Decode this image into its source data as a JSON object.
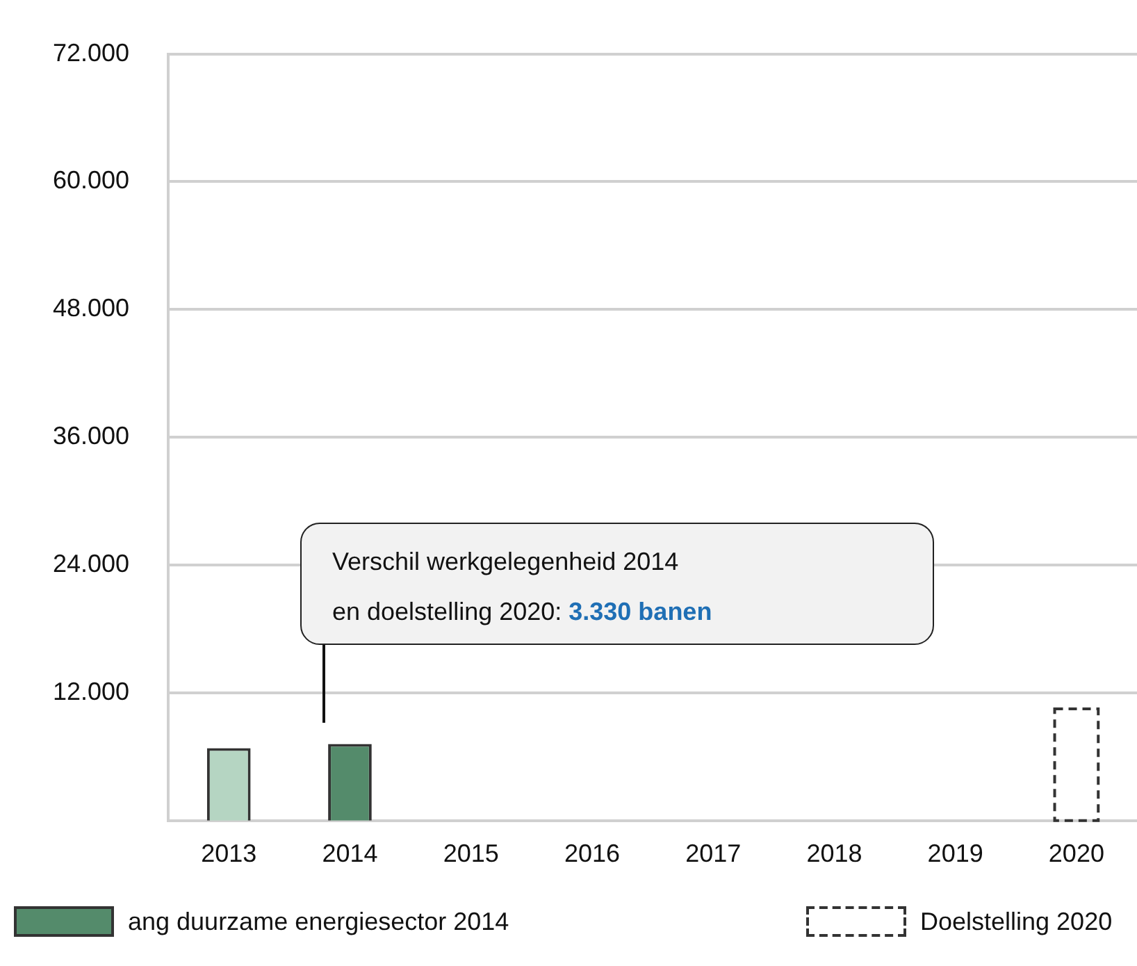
{
  "chart_data": {
    "type": "bar",
    "categories": [
      "2013",
      "2014",
      "2015",
      "2016",
      "2017",
      "2018",
      "2019",
      "2020"
    ],
    "series": [
      {
        "name": "ang duurzame energiesector 2014",
        "color": "#548b6b",
        "colors": [
          "#b5d5c2",
          "#548b6b",
          null,
          null,
          null,
          null,
          null,
          null
        ],
        "values": [
          6800,
          7200,
          null,
          null,
          null,
          null,
          null,
          null
        ]
      },
      {
        "name": "Doelstelling 2020",
        "color": "#333333",
        "line_style": "dashed",
        "values": [
          null,
          null,
          null,
          null,
          null,
          null,
          null,
          10500
        ]
      }
    ],
    "ylim": [
      0,
      72000
    ],
    "yticks": [
      {
        "value": 12000,
        "label": "12.000"
      },
      {
        "value": 24000,
        "label": "24.000"
      },
      {
        "value": 36000,
        "label": "36.000"
      },
      {
        "value": 48000,
        "label": "48.000"
      },
      {
        "value": 60000,
        "label": "60.000"
      },
      {
        "value": 72000,
        "label": "72.000"
      }
    ],
    "grid": "y",
    "legend": "bottom",
    "annotations": [
      "Verschil werkgelegenheid 2014\nen doelstelling 2020: 3.330 banen"
    ]
  }
}
